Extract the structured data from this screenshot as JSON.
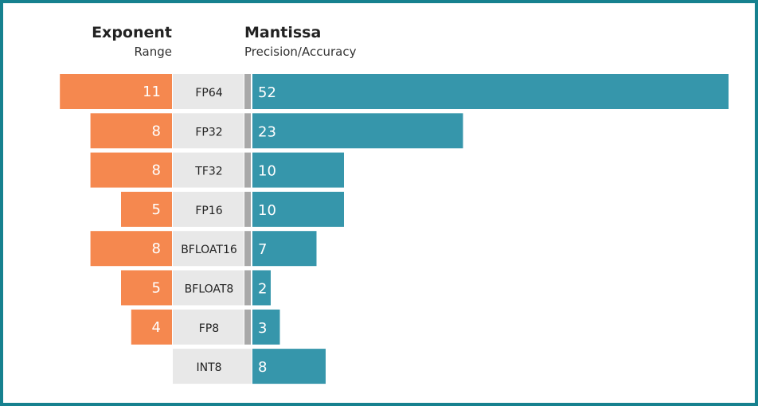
{
  "header": {
    "exponent_title": "Exponent",
    "exponent_subtitle": "Range",
    "mantissa_title": "Mantissa",
    "mantissa_subtitle": "Precision/Accuracy"
  },
  "colors": {
    "exponent": "#f5884f",
    "mantissa": "#3696ab",
    "label_bg": "#e8e8e8",
    "sign_bit": "#a8a8a8",
    "border": "#16818f"
  },
  "chart_data": {
    "type": "bar",
    "categories": [
      "FP64",
      "FP32",
      "TF32",
      "FP16",
      "BFLOAT16",
      "BFLOAT8",
      "FP8",
      "INT8"
    ],
    "series": [
      {
        "name": "Exponent",
        "values": [
          11,
          8,
          8,
          5,
          8,
          5,
          4,
          null
        ]
      },
      {
        "name": "Mantissa",
        "values": [
          52,
          23,
          10,
          10,
          7,
          2,
          3,
          8
        ]
      }
    ],
    "sign_bit": [
      true,
      true,
      true,
      true,
      true,
      true,
      true,
      false
    ]
  }
}
